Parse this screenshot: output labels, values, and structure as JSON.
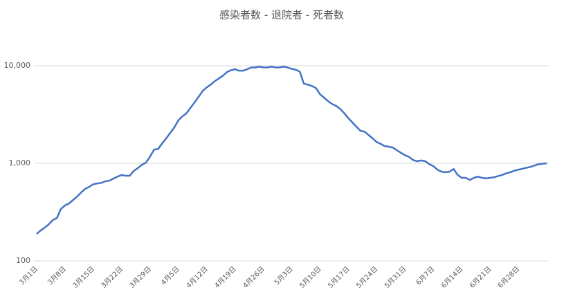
{
  "chart_data": {
    "type": "line",
    "title": "感染者数 - 退院者 - 死者数",
    "categories": [
      "3月1日",
      null,
      null,
      null,
      null,
      null,
      null,
      "3月8日",
      null,
      null,
      null,
      null,
      null,
      null,
      "3月15日",
      null,
      null,
      null,
      null,
      null,
      null,
      "3月22日",
      null,
      null,
      null,
      null,
      null,
      null,
      "3月29日",
      null,
      null,
      null,
      null,
      null,
      null,
      "4月5日",
      null,
      null,
      null,
      null,
      null,
      null,
      "4月12日",
      null,
      null,
      null,
      null,
      null,
      null,
      "4月19日",
      null,
      null,
      null,
      null,
      null,
      null,
      "4月26日",
      null,
      null,
      null,
      null,
      null,
      null,
      "5月3日",
      null,
      null,
      null,
      null,
      null,
      null,
      "5月10日",
      null,
      null,
      null,
      null,
      null,
      null,
      "5月17日",
      null,
      null,
      null,
      null,
      null,
      null,
      "5月24日",
      null,
      null,
      null,
      null,
      null,
      null,
      "5月31日",
      null,
      null,
      null,
      null,
      null,
      null,
      "6月7日",
      null,
      null,
      null,
      null,
      null,
      null,
      "6月14日",
      null,
      null,
      null,
      null,
      null,
      null,
      "6月21日",
      null,
      null,
      null,
      null,
      null,
      null,
      "6月28日",
      null,
      null,
      null,
      null,
      null,
      null,
      null
    ],
    "values": [
      189,
      205,
      219,
      237,
      262,
      275,
      340,
      370,
      388,
      420,
      456,
      503,
      547,
      574,
      611,
      621,
      631,
      654,
      664,
      698,
      731,
      758,
      746,
      746,
      836,
      893,
      967,
      1015,
      1170,
      1380,
      1400,
      1600,
      1800,
      2050,
      2330,
      2750,
      3030,
      3250,
      3700,
      4200,
      4800,
      5500,
      6000,
      6400,
      6950,
      7400,
      7900,
      8600,
      9000,
      9200,
      8900,
      8900,
      9200,
      9600,
      9600,
      9800,
      9600,
      9600,
      9800,
      9600,
      9600,
      9800,
      9600,
      9300,
      9100,
      8700,
      6550,
      6400,
      6200,
      5900,
      5100,
      4700,
      4330,
      4050,
      3870,
      3600,
      3250,
      2900,
      2620,
      2370,
      2150,
      2110,
      1950,
      1800,
      1650,
      1580,
      1500,
      1480,
      1450,
      1360,
      1280,
      1210,
      1160,
      1080,
      1050,
      1070,
      1050,
      980,
      935,
      860,
      820,
      810,
      820,
      875,
      760,
      710,
      710,
      675,
      710,
      730,
      710,
      700,
      710,
      720,
      740,
      760,
      790,
      810,
      840,
      860,
      880,
      900,
      920,
      950,
      980,
      990,
      1000
    ],
    "color": "#4472c4",
    "log_scale": true,
    "grid": true,
    "ylim": [
      100,
      10000
    ],
    "yticks": [
      100,
      {
        "value": 1000,
        "label": "1,000"
      },
      {
        "value": 10000,
        "label": "10,000"
      }
    ]
  }
}
